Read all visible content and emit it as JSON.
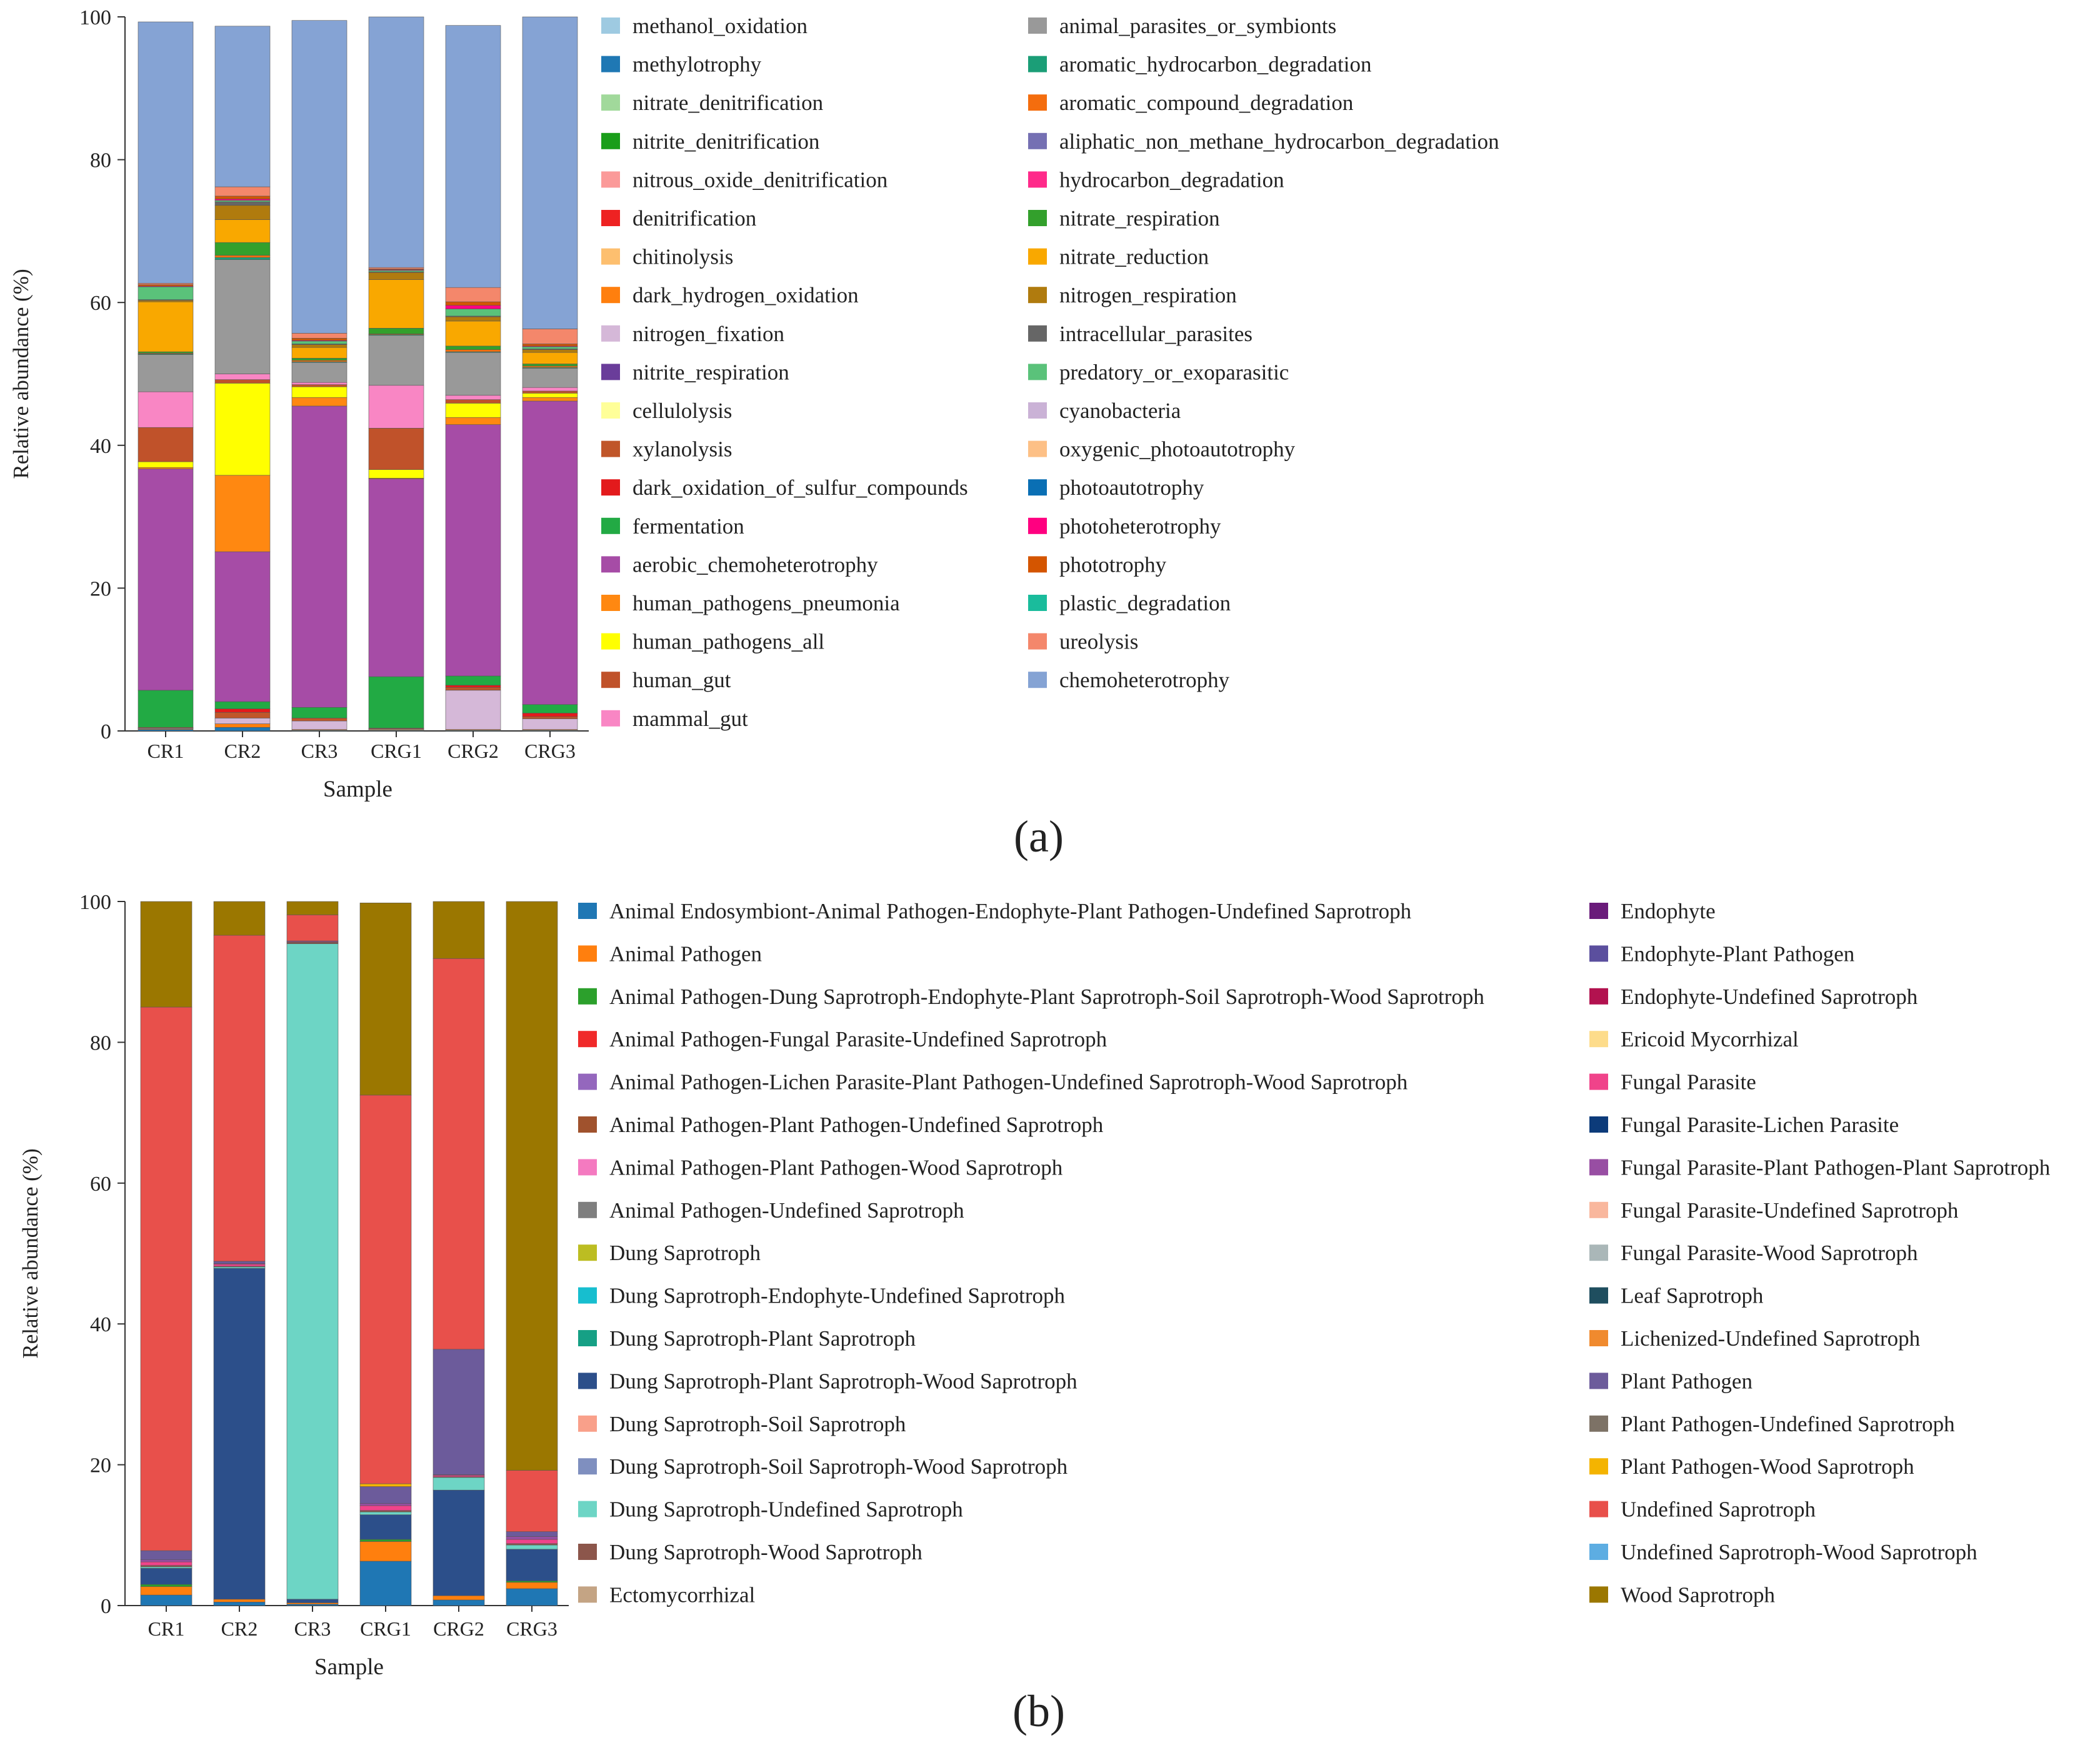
{
  "panel_labels": {
    "a": "(a)",
    "b": "(b)"
  },
  "chart_data": [
    {
      "type": "bar",
      "stacked": true,
      "panel": "a",
      "title": "",
      "xlabel": "Sample",
      "ylabel": "Relative abundance (%)",
      "ylim": [
        0,
        100
      ],
      "yticks": [
        0,
        20,
        40,
        60,
        80,
        100
      ],
      "categories": [
        "CR1",
        "CR2",
        "CR3",
        "CRG1",
        "CRG2",
        "CRG3"
      ],
      "legend_columns": 2,
      "series": [
        {
          "name": "methanol_oxidation",
          "color": "#9ecae1",
          "values": [
            0,
            0,
            0,
            0,
            0,
            0
          ]
        },
        {
          "name": "methylotrophy",
          "color": "#1f78b4",
          "values": [
            0.2,
            0.5,
            0.1,
            0.1,
            0.1,
            0.1
          ]
        },
        {
          "name": "nitrate_denitrification",
          "color": "#a1d99b",
          "values": [
            0,
            0,
            0,
            0,
            0,
            0
          ]
        },
        {
          "name": "nitrite_denitrification",
          "color": "#1a9e1a",
          "values": [
            0,
            0,
            0,
            0,
            0,
            0
          ]
        },
        {
          "name": "nitrous_oxide_denitrification",
          "color": "#fb9a99",
          "values": [
            0,
            0,
            0,
            0,
            0,
            0
          ]
        },
        {
          "name": "denitrification",
          "color": "#ee2222",
          "values": [
            0,
            0,
            0,
            0,
            0,
            0
          ]
        },
        {
          "name": "chitinolysis",
          "color": "#fdbf6f",
          "values": [
            0,
            0,
            0,
            0,
            0,
            0
          ]
        },
        {
          "name": "dark_hydrogen_oxidation",
          "color": "#ff7f0e",
          "values": [
            0.1,
            0.5,
            0.1,
            0.1,
            0.1,
            0.1
          ]
        },
        {
          "name": "nitrogen_fixation",
          "color": "#d5b8d8",
          "values": [
            0.1,
            0.8,
            1.2,
            0.1,
            5.5,
            1.5
          ]
        },
        {
          "name": "nitrite_respiration",
          "color": "#6a3d9a",
          "values": [
            0,
            0,
            0,
            0,
            0,
            0
          ]
        },
        {
          "name": "cellulolysis",
          "color": "#ffff99",
          "values": [
            0,
            0,
            0,
            0,
            0,
            0
          ]
        },
        {
          "name": "xylanolysis",
          "color": "#c0562a",
          "values": [
            0.1,
            0.8,
            0.4,
            0.1,
            0.4,
            0.3
          ]
        },
        {
          "name": "dark_oxidation_of_sulfur_compounds",
          "color": "#e31a1c",
          "values": [
            0,
            0.5,
            0,
            0,
            0.3,
            0.5
          ]
        },
        {
          "name": "fermentation",
          "color": "#22aa44",
          "values": [
            5.2,
            1.0,
            1.5,
            7.2,
            1.3,
            1.2
          ]
        },
        {
          "name": "aerobic_chemoheterotrophy",
          "color": "#a64ca6",
          "values": [
            31.0,
            21.0,
            42.2,
            27.7,
            35.2,
            42.5
          ]
        },
        {
          "name": "human_pathogens_pneumonia",
          "color": "#ff8811",
          "values": [
            0.2,
            10.7,
            1.2,
            0.1,
            1.0,
            0.5
          ]
        },
        {
          "name": "human_pathogens_all",
          "color": "#ffff00",
          "values": [
            0.8,
            12.9,
            1.5,
            1.2,
            2.0,
            0.6
          ]
        },
        {
          "name": "human_gut",
          "color": "#c0522a",
          "values": [
            4.8,
            0.5,
            0.3,
            5.8,
            0.5,
            0.3
          ]
        },
        {
          "name": "mammal_gut",
          "color": "#f986c4",
          "values": [
            5.0,
            0.8,
            0.3,
            6.0,
            0.6,
            0.5
          ]
        },
        {
          "name": "animal_parasites_or_symbionts",
          "color": "#999999",
          "values": [
            5.2,
            16.0,
            2.8,
            7.0,
            6.0,
            2.7
          ]
        },
        {
          "name": "aromatic_hydrocarbon_degradation",
          "color": "#1b9e77",
          "values": [
            0.1,
            0.3,
            0.1,
            0.1,
            0.1,
            0.1
          ]
        },
        {
          "name": "aromatic_compound_degradation",
          "color": "#f46d0e",
          "values": [
            0.1,
            0.3,
            0.2,
            0.1,
            0.3,
            0.2
          ]
        },
        {
          "name": "aliphatic_non_methane_hydrocarbon_degradation",
          "color": "#7570b3",
          "values": [
            0,
            0,
            0,
            0,
            0,
            0
          ]
        },
        {
          "name": "hydrocarbon_degradation",
          "color": "#ff2a8a",
          "values": [
            0,
            0,
            0,
            0,
            0,
            0
          ]
        },
        {
          "name": "nitrate_respiration",
          "color": "#33a02c",
          "values": [
            0.2,
            1.8,
            0.3,
            0.8,
            0.5,
            0.3
          ]
        },
        {
          "name": "nitrate_reduction",
          "color": "#f9a800",
          "values": [
            7.0,
            3.2,
            1.5,
            6.8,
            3.5,
            1.6
          ]
        },
        {
          "name": "nitrogen_respiration",
          "color": "#b07b0e",
          "values": [
            0.2,
            2.0,
            0.4,
            1.0,
            0.6,
            0.4
          ]
        },
        {
          "name": "intracellular_parasites",
          "color": "#666666",
          "values": [
            0.1,
            0.5,
            0.1,
            0.1,
            0.1,
            0.1
          ]
        },
        {
          "name": "predatory_or_exoparasitic",
          "color": "#5ac27a",
          "values": [
            1.8,
            0.2,
            0.4,
            0.2,
            1.0,
            0.3
          ]
        },
        {
          "name": "cyanobacteria",
          "color": "#cab2d6",
          "values": [
            0,
            0,
            0,
            0,
            0,
            0
          ]
        },
        {
          "name": "oxygenic_photoautotrophy",
          "color": "#fdc086",
          "values": [
            0,
            0,
            0,
            0,
            0,
            0
          ]
        },
        {
          "name": "photoautotrophy",
          "color": "#0a6fb4",
          "values": [
            0,
            0,
            0,
            0,
            0,
            0
          ]
        },
        {
          "name": "photoheterotrophy",
          "color": "#ff0080",
          "values": [
            0.1,
            0.2,
            0.1,
            0.1,
            0.5,
            0.1
          ]
        },
        {
          "name": "phototrophy",
          "color": "#d45500",
          "values": [
            0.2,
            0.4,
            0.3,
            0.1,
            0.5,
            0.3
          ]
        },
        {
          "name": "plastic_degradation",
          "color": "#1abc9c",
          "values": [
            0,
            0,
            0,
            0,
            0,
            0
          ]
        },
        {
          "name": "ureolysis",
          "color": "#f4876b",
          "values": [
            0.2,
            1.3,
            0.7,
            0.2,
            2.0,
            2.1
          ]
        },
        {
          "name": "chemoheterotrophy",
          "color": "#85a3d4",
          "values": [
            36.6,
            22.5,
            43.8,
            35.1,
            36.7,
            43.7
          ]
        }
      ]
    },
    {
      "type": "bar",
      "stacked": true,
      "panel": "b",
      "title": "",
      "xlabel": "Sample",
      "ylabel": "Relative abundance (%)",
      "ylim": [
        0,
        100
      ],
      "yticks": [
        0,
        20,
        40,
        60,
        80,
        100
      ],
      "categories": [
        "CR1",
        "CR2",
        "CR3",
        "CRG1",
        "CRG2",
        "CRG3"
      ],
      "legend_columns": 2,
      "series": [
        {
          "name": "Animal Endosymbiont-Animal Pathogen-Endophyte-Plant Pathogen-Undefined Saprotroph",
          "color": "#1f77b4",
          "values": [
            1.5,
            0.5,
            0.2,
            6.3,
            0.8,
            2.4
          ]
        },
        {
          "name": "Animal Pathogen",
          "color": "#ff7f0e",
          "values": [
            1.2,
            0.4,
            0.2,
            2.8,
            0.6,
            0.9
          ]
        },
        {
          "name": "Animal Pathogen-Dung Saprotroph-Endophyte-Plant Saprotroph-Soil Saprotroph-Wood Saprotroph",
          "color": "#2ca02c",
          "values": [
            0.3,
            0,
            0,
            0.3,
            0,
            0.2
          ]
        },
        {
          "name": "Animal Pathogen-Fungal Parasite-Undefined Saprotroph",
          "color": "#f02a2a",
          "values": [
            0,
            0,
            0,
            0,
            0,
            0
          ]
        },
        {
          "name": "Animal Pathogen-Lichen Parasite-Plant Pathogen-Undefined Saprotroph-Wood Saprotroph",
          "color": "#9467bd",
          "values": [
            0,
            0,
            0,
            0,
            0,
            0
          ]
        },
        {
          "name": "Animal Pathogen-Plant Pathogen-Undefined Saprotroph",
          "color": "#a0522d",
          "values": [
            0,
            0,
            0,
            0,
            0,
            0
          ]
        },
        {
          "name": "Animal Pathogen-Plant Pathogen-Wood Saprotroph",
          "color": "#f47ac0",
          "values": [
            0,
            0,
            0,
            0,
            0,
            0
          ]
        },
        {
          "name": "Animal Pathogen-Undefined Saprotroph",
          "color": "#7f7f7f",
          "values": [
            0,
            0,
            0,
            0,
            0,
            0
          ]
        },
        {
          "name": "Dung Saprotroph",
          "color": "#bcbd22",
          "values": [
            0,
            0,
            0,
            0,
            0,
            0
          ]
        },
        {
          "name": "Dung Saprotroph-Endophyte-Undefined Saprotroph",
          "color": "#17becf",
          "values": [
            0,
            0,
            0,
            0,
            0,
            0
          ]
        },
        {
          "name": "Dung Saprotroph-Plant Saprotroph",
          "color": "#16a085",
          "values": [
            0,
            0,
            0,
            0,
            0,
            0
          ]
        },
        {
          "name": "Dung Saprotroph-Plant Saprotroph-Wood Saprotroph",
          "color": "#2c4f8a",
          "values": [
            2.3,
            47.0,
            0.5,
            3.5,
            15.0,
            4.5
          ]
        },
        {
          "name": "Dung Saprotroph-Soil Saprotroph",
          "color": "#f9a08a",
          "values": [
            0,
            0,
            0,
            0,
            0,
            0
          ]
        },
        {
          "name": "Dung Saprotroph-Soil Saprotroph-Wood Saprotroph",
          "color": "#7f8fbf",
          "values": [
            0,
            0,
            0,
            0,
            0,
            0
          ]
        },
        {
          "name": "Dung Saprotroph-Undefined Saprotroph",
          "color": "#6dd5c5",
          "values": [
            0.2,
            0.2,
            93.1,
            0.4,
            1.8,
            0.6
          ]
        },
        {
          "name": "Dung Saprotroph-Wood Saprotroph",
          "color": "#8c564b",
          "values": [
            0.2,
            0.1,
            0.2,
            0.2,
            0.1,
            0.2
          ]
        },
        {
          "name": "Ectomycorrhizal",
          "color": "#c4a484",
          "values": [
            0,
            0,
            0,
            0,
            0,
            0
          ]
        },
        {
          "name": "Endophyte",
          "color": "#6a1b7a",
          "values": [
            0,
            0,
            0,
            0,
            0,
            0
          ]
        },
        {
          "name": "Endophyte-Plant Pathogen",
          "color": "#5b4f9e",
          "values": [
            0,
            0,
            0,
            0,
            0,
            0
          ]
        },
        {
          "name": "Endophyte-Undefined Saprotroph",
          "color": "#b2124f",
          "values": [
            0,
            0,
            0,
            0,
            0,
            0
          ]
        },
        {
          "name": "Ericoid Mycorrhizal",
          "color": "#fddc8b",
          "values": [
            0,
            0,
            0,
            0,
            0,
            0
          ]
        },
        {
          "name": "Fungal Parasite",
          "color": "#f0438a",
          "values": [
            0.5,
            0.3,
            0.1,
            0.7,
            0.2,
            0.6
          ]
        },
        {
          "name": "Fungal Parasite-Lichen Parasite",
          "color": "#0c3b7a",
          "values": [
            0,
            0,
            0,
            0,
            0,
            0
          ]
        },
        {
          "name": "Fungal Parasite-Plant Pathogen-Plant Saprotroph",
          "color": "#984ea3",
          "values": [
            0.3,
            0.1,
            0,
            0.3,
            0.1,
            0.4
          ]
        },
        {
          "name": "Fungal Parasite-Undefined Saprotroph",
          "color": "#f9b79d",
          "values": [
            0,
            0,
            0,
            0,
            0,
            0
          ]
        },
        {
          "name": "Fungal Parasite-Wood Saprotroph",
          "color": "#aab7b8",
          "values": [
            0,
            0,
            0,
            0,
            0,
            0
          ]
        },
        {
          "name": "Leaf Saprotroph",
          "color": "#1f4e5f",
          "values": [
            0,
            0,
            0,
            0,
            0,
            0
          ]
        },
        {
          "name": "Lichenized-Undefined Saprotroph",
          "color": "#f08a2e",
          "values": [
            0,
            0,
            0,
            0,
            0,
            0
          ]
        },
        {
          "name": "Plant Pathogen",
          "color": "#6c5b9b",
          "values": [
            1.3,
            0.3,
            0.1,
            2.4,
            17.8,
            0.7
          ]
        },
        {
          "name": "Plant Pathogen-Undefined Saprotroph",
          "color": "#7d7266",
          "values": [
            0,
            0,
            0,
            0,
            0,
            0
          ]
        },
        {
          "name": "Plant Pathogen-Wood Saprotroph",
          "color": "#f4b400",
          "values": [
            0,
            0,
            0,
            0.4,
            0,
            0
          ]
        },
        {
          "name": "Undefined Saprotroph",
          "color": "#e8504b",
          "values": [
            77.2,
            46.3,
            3.7,
            55.2,
            55.5,
            8.7
          ]
        },
        {
          "name": "Undefined Saprotroph-Wood Saprotroph",
          "color": "#5dade2",
          "values": [
            0,
            0,
            0,
            0,
            0,
            0
          ]
        },
        {
          "name": "Wood Saprotroph",
          "color": "#9b7700",
          "values": [
            15.0,
            4.8,
            1.9,
            27.3,
            8.1,
            80.8
          ]
        }
      ]
    }
  ]
}
